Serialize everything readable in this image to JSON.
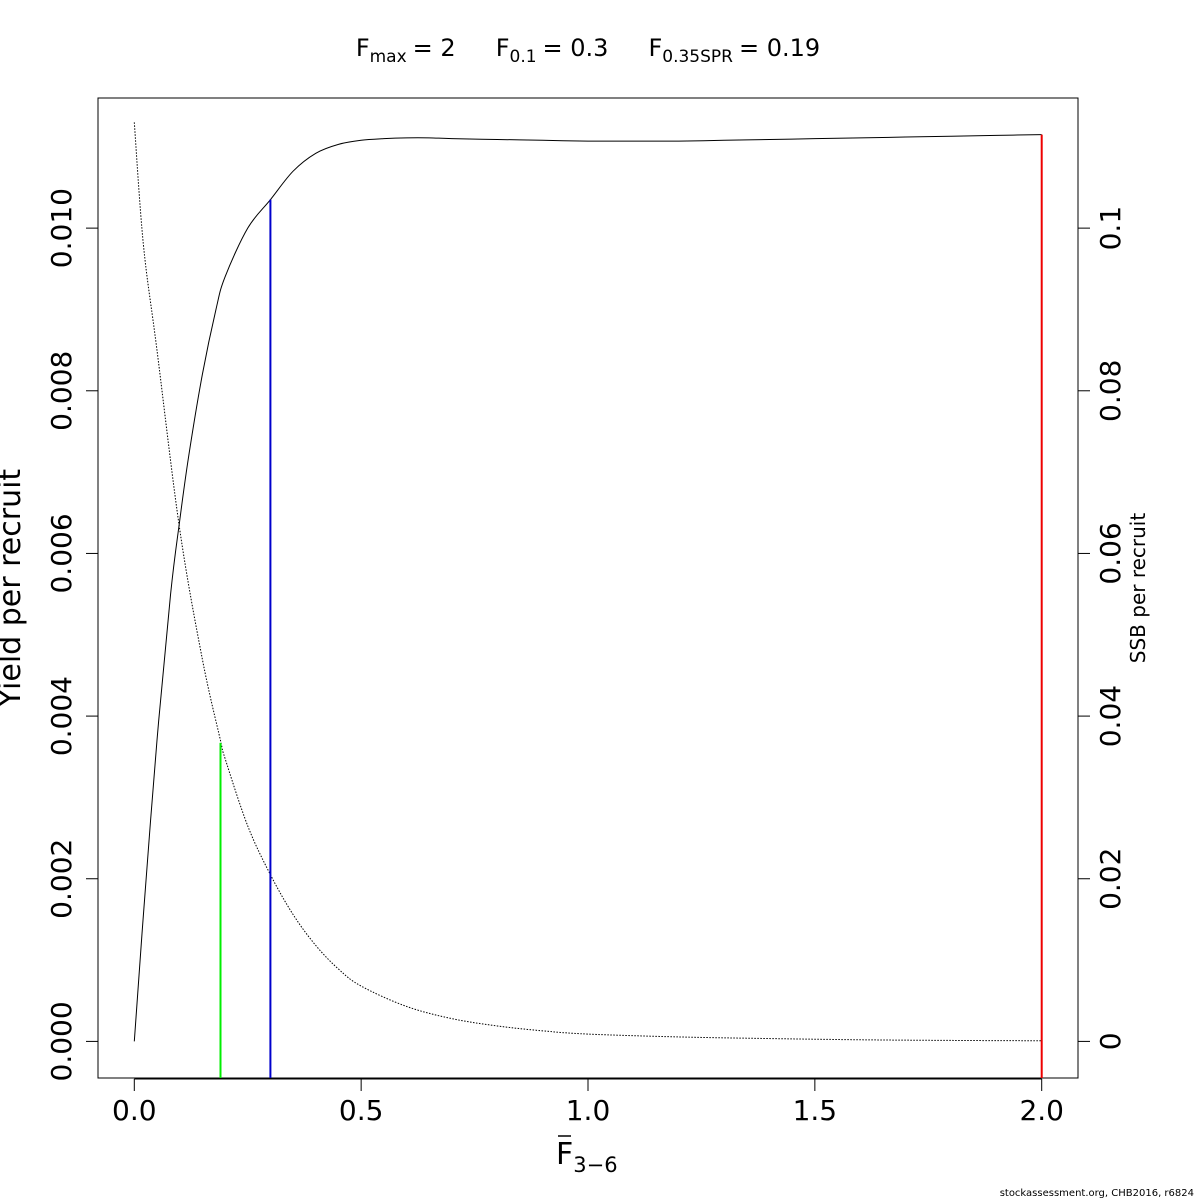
{
  "chart_data": {
    "type": "line",
    "title_parts": [
      {
        "label": "F",
        "sub": "max",
        "value": "= 2"
      },
      {
        "label": "F",
        "sub": "0.1",
        "value": "= 0.3"
      },
      {
        "label": "F",
        "sub": "0.35SPR",
        "value": "= 0.19"
      }
    ],
    "xlabel": {
      "main": "F",
      "sub": "3−6",
      "overbar": true
    },
    "ylabel": "Yield per recruit",
    "y2label": "SSB per recruit",
    "xlim": [
      -0.08,
      2.08
    ],
    "ylim": [
      -0.00045,
      0.0116
    ],
    "y2lim": [
      -0.0045,
      0.116
    ],
    "x_ticks": [
      0.0,
      0.5,
      1.0,
      1.5,
      2.0
    ],
    "x_tick_labels": [
      "0.0",
      "0.5",
      "1.0",
      "1.5",
      "2.0"
    ],
    "y_ticks": [
      0.0,
      0.002,
      0.004,
      0.006,
      0.008,
      0.01
    ],
    "y_tick_labels": [
      "0.000",
      "0.002",
      "0.004",
      "0.006",
      "0.008",
      "0.010"
    ],
    "y2_ticks": [
      0,
      0.02,
      0.04,
      0.06,
      0.08,
      0.1
    ],
    "y2_tick_labels": [
      "0",
      "0.02",
      "0.04",
      "0.06",
      "0.08",
      "0.1"
    ],
    "series": [
      {
        "name": "Yield per recruit",
        "axis": "left",
        "style": "solid",
        "color": "#000000",
        "x": [
          0,
          0.02,
          0.05,
          0.08,
          0.1,
          0.12,
          0.15,
          0.18,
          0.2,
          0.25,
          0.3,
          0.35,
          0.4,
          0.45,
          0.5,
          0.55,
          0.6,
          0.65,
          0.7,
          0.8,
          0.9,
          1.0,
          1.1,
          1.2,
          1.3,
          1.4,
          1.5,
          1.6,
          1.7,
          1.8,
          1.9,
          2.0
        ],
        "y": [
          0.0,
          0.00155,
          0.0037,
          0.0055,
          0.0064,
          0.0072,
          0.0082,
          0.009,
          0.0094,
          0.01,
          0.01035,
          0.0107,
          0.01092,
          0.01103,
          0.01108,
          0.0111,
          0.01111,
          0.01111,
          0.0111,
          0.01109,
          0.01108,
          0.01107,
          0.01107,
          0.01107,
          0.01108,
          0.01109,
          0.0111,
          0.01111,
          0.01112,
          0.01113,
          0.01114,
          0.01115
        ]
      },
      {
        "name": "SSB per recruit",
        "axis": "right",
        "style": "dotted",
        "color": "#000000",
        "x": [
          0,
          0.02,
          0.05,
          0.1,
          0.15,
          0.19,
          0.2,
          0.25,
          0.3,
          0.35,
          0.4,
          0.45,
          0.5,
          0.6,
          0.7,
          0.8,
          0.9,
          1.0,
          1.2,
          1.4,
          1.6,
          1.8,
          2.0
        ],
        "y": [
          0.113,
          0.098,
          0.085,
          0.063,
          0.047,
          0.037,
          0.0348,
          0.0265,
          0.0205,
          0.0156,
          0.0118,
          0.0089,
          0.0068,
          0.0043,
          0.0028,
          0.0019,
          0.0013,
          0.0009,
          0.00055,
          0.00035,
          0.0002,
          0.00012,
          8e-05
        ]
      }
    ],
    "reference_lines": [
      {
        "name": "F0.35SPR",
        "x": 0.19,
        "y_top": 0.0037,
        "axis": "right",
        "y2_top": 0.0367,
        "color": "#00ee00"
      },
      {
        "name": "F0.1",
        "x": 0.3,
        "y_top": 0.01035,
        "axis": "left",
        "color": "#0000cc"
      },
      {
        "name": "Fmax",
        "x": 2.0,
        "y_top": 0.01115,
        "axis": "left",
        "color": "#ee0000"
      }
    ],
    "grid": false,
    "credit": "stockassessment.org, CHB2016, r6824"
  }
}
